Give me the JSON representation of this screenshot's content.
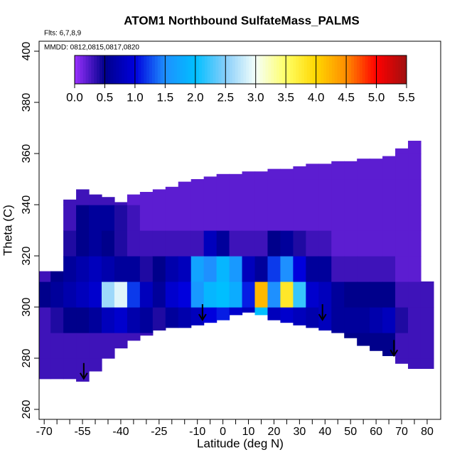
{
  "chart_data": {
    "type": "heatmap",
    "title": "ATOM1 Northbound SulfateMass_PALMS",
    "flights_note": "Flts: 6,7,8,9",
    "dates_note": "MMDD: 0812,0815,0817,0820",
    "x_label": "Latitude (deg N)",
    "y_label": "Theta (C)",
    "xlim": [
      -72,
      85.3
    ],
    "ylim": [
      256.1,
      403.9
    ],
    "xticks": [
      -70,
      -55,
      -40,
      -25,
      -10,
      0,
      10,
      20,
      30,
      40,
      50,
      60,
      70,
      80
    ],
    "xminor_ticks": [
      -65,
      -60,
      -50,
      -45,
      -35,
      -30,
      -20,
      -15,
      -5,
      5,
      15,
      25,
      35,
      45,
      55,
      65,
      75
    ],
    "yticks": [
      260,
      280,
      300,
      320,
      340,
      360,
      380,
      400
    ],
    "lat": [
      -70,
      -65,
      -60,
      -55,
      -50,
      -45,
      -40,
      -35,
      -30,
      -25,
      -20,
      -15,
      -10,
      -5,
      0,
      5,
      10,
      15,
      20,
      25,
      30,
      35,
      40,
      45,
      50,
      55,
      60,
      65,
      70,
      75,
      80
    ],
    "lat_width": 5,
    "bottom": [
      272,
      272,
      272,
      271,
      275,
      280,
      284,
      287,
      289,
      291,
      292,
      292,
      293,
      294,
      295,
      297,
      298,
      297,
      295,
      294,
      293,
      292,
      291,
      290,
      288,
      285,
      283,
      281,
      278,
      276,
      276
    ],
    "top": [
      314,
      314,
      342,
      346,
      344,
      343,
      341,
      344,
      345,
      346,
      347,
      349,
      350,
      351,
      352,
      352,
      353,
      353,
      354,
      354,
      355,
      356,
      356,
      357,
      357,
      358,
      358,
      359,
      362,
      365,
      310
    ],
    "theta_bins": [
      270,
      280,
      290,
      300,
      310,
      320,
      330,
      340,
      350,
      360,
      370
    ],
    "z": [
      [
        0.3,
        0.3,
        0.3,
        0.5,
        0.3,
        null,
        null,
        null,
        null,
        null
      ],
      [
        0.3,
        0.3,
        0.4,
        0.6,
        0.5,
        null,
        null,
        null,
        null,
        null
      ],
      [
        0.3,
        0.3,
        0.5,
        0.7,
        0.6,
        0.4,
        0.3,
        0.3,
        null,
        null
      ],
      [
        0.3,
        0.3,
        0.5,
        0.8,
        0.7,
        0.5,
        0.5,
        0.3,
        null,
        null
      ],
      [
        0.3,
        0.3,
        0.6,
        0.9,
        0.8,
        0.6,
        0.6,
        0.3,
        null,
        null
      ],
      [
        null,
        0.3,
        0.8,
        2.6,
        0.7,
        0.5,
        0.6,
        0.3,
        null,
        null
      ],
      [
        null,
        0.3,
        0.9,
        2.9,
        0.6,
        0.4,
        0.4,
        0.3,
        null,
        null
      ],
      [
        null,
        0.3,
        0.7,
        1.2,
        0.6,
        0.3,
        0.3,
        0.2,
        null,
        null
      ],
      [
        null,
        0.3,
        0.6,
        0.8,
        0.4,
        0.3,
        0.2,
        0.2,
        null,
        null
      ],
      [
        null,
        null,
        0.4,
        0.6,
        0.5,
        0.3,
        0.2,
        0.2,
        null,
        null
      ],
      [
        null,
        null,
        0.6,
        0.9,
        0.7,
        0.3,
        0.2,
        0.2,
        null,
        null
      ],
      [
        null,
        null,
        0.7,
        1.0,
        0.8,
        0.3,
        0.2,
        0.2,
        null,
        null
      ],
      [
        null,
        null,
        0.8,
        1.6,
        1.7,
        0.3,
        0.2,
        0.2,
        0.2,
        null
      ],
      [
        null,
        null,
        1.0,
        1.9,
        1.5,
        0.8,
        0.2,
        0.2,
        0.2,
        null
      ],
      [
        null,
        null,
        1.1,
        2.0,
        1.9,
        0.6,
        0.2,
        0.2,
        0.2,
        null
      ],
      [
        null,
        null,
        0.9,
        1.8,
        1.6,
        0.3,
        0.2,
        0.2,
        0.2,
        null
      ],
      [
        null,
        null,
        0.8,
        1.1,
        0.8,
        0.3,
        0.2,
        0.2,
        0.2,
        null
      ],
      [
        null,
        null,
        2.0,
        4.2,
        0.6,
        0.3,
        0.2,
        0.2,
        0.2,
        null
      ],
      [
        null,
        null,
        0.8,
        1.5,
        1.2,
        0.5,
        0.2,
        0.2,
        0.2,
        null
      ],
      [
        null,
        null,
        0.9,
        3.8,
        1.5,
        0.6,
        0.2,
        0.2,
        0.2,
        null
      ],
      [
        null,
        null,
        0.8,
        2.2,
        1.0,
        0.4,
        0.2,
        0.2,
        0.2,
        null
      ],
      [
        null,
        null,
        0.7,
        0.9,
        0.6,
        0.3,
        0.2,
        0.2,
        0.2,
        null
      ],
      [
        null,
        null,
        0.8,
        0.8,
        0.6,
        0.3,
        0.2,
        0.2,
        0.2,
        null
      ],
      [
        null,
        null,
        0.6,
        0.6,
        0.3,
        0.2,
        0.2,
        0.2,
        0.2,
        null
      ],
      [
        null,
        0.5,
        0.6,
        0.5,
        0.3,
        0.2,
        0.2,
        0.2,
        0.2,
        null
      ],
      [
        null,
        0.5,
        0.6,
        0.5,
        0.3,
        0.2,
        0.2,
        0.2,
        0.2,
        null
      ],
      [
        null,
        0.5,
        0.7,
        0.5,
        0.3,
        0.2,
        0.2,
        0.2,
        0.2,
        null
      ],
      [
        null,
        0.5,
        0.8,
        0.5,
        0.3,
        0.2,
        0.2,
        0.2,
        0.2,
        null
      ],
      [
        0.3,
        0.3,
        0.4,
        0.3,
        0.2,
        0.2,
        0.2,
        0.2,
        0.2,
        0.2
      ],
      [
        0.3,
        0.3,
        0.3,
        0.3,
        0.2,
        0.2,
        0.2,
        0.2,
        0.2,
        0.2
      ],
      [
        0.3,
        0.3,
        0.3,
        0.3,
        null,
        null,
        null,
        null,
        null,
        null
      ]
    ],
    "colorbar": {
      "lim": [
        0,
        5.5
      ],
      "colors": [
        "#9a30ff",
        "#00008b",
        "#0000dd",
        "#1e90ff",
        "#00bfff",
        "#87cefa",
        "#f5fffa",
        "#ffff66",
        "#ffd700",
        "#ff8c00",
        "#ff0000",
        "#a01010"
      ],
      "ticks": [
        {
          "value": 0,
          "label": "0.0"
        },
        {
          "value": 0.5,
          "label": "0.5"
        },
        {
          "value": 1,
          "label": "1.0"
        },
        {
          "value": 1.5,
          "label": "1.5"
        },
        {
          "value": 2,
          "label": "2.0"
        },
        {
          "value": 2.5,
          "label": "2.5"
        },
        {
          "value": 3,
          "label": "3.0"
        },
        {
          "value": 3.5,
          "label": "3.5"
        },
        {
          "value": 4,
          "label": "4.0"
        },
        {
          "value": 4.5,
          "label": "4.5"
        },
        {
          "value": 5,
          "label": "5.0"
        },
        {
          "value": 5.5,
          "label": "5.5"
        }
      ]
    },
    "arrows": {
      "lat": [
        -54.5,
        -8,
        39,
        67
      ],
      "theta": [
        272,
        295,
        295,
        281
      ]
    }
  }
}
